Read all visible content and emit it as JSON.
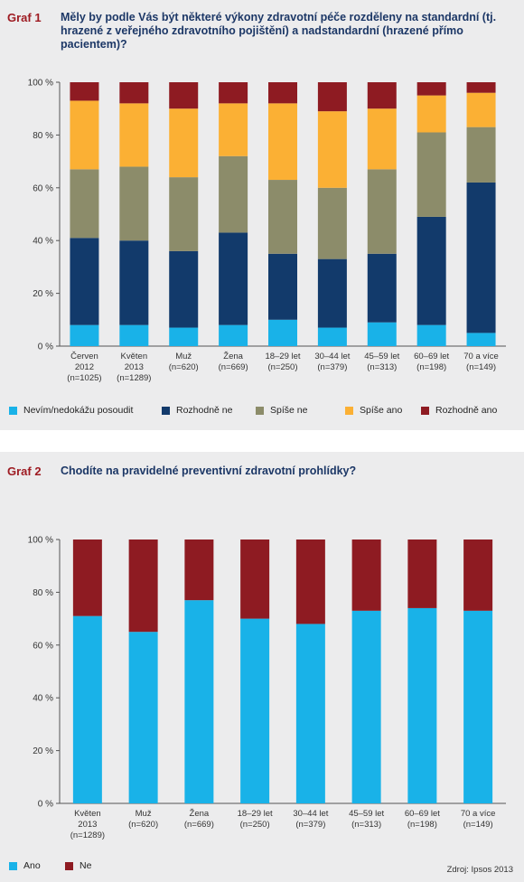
{
  "colors": {
    "nevim": "#19b2e8",
    "rozhodne_ne": "#123a6b",
    "spise_ne": "#8c8c6a",
    "spise_ano": "#fbb034",
    "rozhodne_ano": "#8e1b22",
    "ano": "#19b2e8",
    "ne": "#8e1b22"
  },
  "graf1": {
    "label": "Graf 1",
    "title": "Měly by podle Vás být některé výkony zdravotní péče rozděleny na standardní (tj. hrazené z veřejného zdravotního pojištění) a nadstandardní (hrazené přímo pacientem)?"
  },
  "graf2": {
    "label": "Graf 2",
    "title": "Chodíte na pravidelné preventivní zdravotní prohlídky?"
  },
  "source": "Zdroj: Ipsos 2013",
  "chart_data": [
    {
      "type": "bar",
      "stacked": true,
      "yticks": [
        "0 %",
        "20 %",
        "40 %",
        "60 %",
        "80 %",
        "100 %"
      ],
      "ylim": [
        0,
        100
      ],
      "grid": false,
      "legend_position": "bottom",
      "categories": [
        [
          "Červen",
          "2012",
          "(n=1025)"
        ],
        [
          "Květen",
          "2013",
          "(n=1289)"
        ],
        [
          "Muž",
          "(n=620)"
        ],
        [
          "Žena",
          "(n=669)"
        ],
        [
          "18–29 let",
          "(n=250)"
        ],
        [
          "30–44 let",
          "(n=379)"
        ],
        [
          "45–59 let",
          "(n=313)"
        ],
        [
          "60–69 let",
          "(n=198)"
        ],
        [
          "70 a více",
          "(n=149)"
        ]
      ],
      "series": [
        {
          "name": "Nevím/nedokážu posoudit",
          "color_key": "nevim",
          "values": [
            8,
            8,
            7,
            8,
            10,
            7,
            9,
            8,
            5
          ]
        },
        {
          "name": "Rozhodně ne",
          "color_key": "rozhodne_ne",
          "values": [
            33,
            32,
            29,
            35,
            25,
            26,
            26,
            41,
            57
          ]
        },
        {
          "name": "Spíše ne",
          "color_key": "spise_ne",
          "values": [
            26,
            28,
            28,
            29,
            28,
            27,
            32,
            32,
            21
          ]
        },
        {
          "name": "Spíše ano",
          "color_key": "spise_ano",
          "values": [
            26,
            24,
            26,
            20,
            29,
            29,
            23,
            14,
            13
          ]
        },
        {
          "name": "Rozhodně ano",
          "color_key": "rozhodne_ano",
          "values": [
            7,
            8,
            10,
            8,
            8,
            11,
            10,
            5,
            4
          ]
        }
      ]
    },
    {
      "type": "bar",
      "stacked": true,
      "yticks": [
        "0 %",
        "20 %",
        "40 %",
        "60 %",
        "80 %",
        "100 %"
      ],
      "ylim": [
        0,
        100
      ],
      "grid": false,
      "legend_position": "bottom",
      "categories": [
        [
          "Květen",
          "2013",
          "(n=1289)"
        ],
        [
          "Muž",
          "(n=620)"
        ],
        [
          "Žena",
          "(n=669)"
        ],
        [
          "18–29 let",
          "(n=250)"
        ],
        [
          "30–44 let",
          "(n=379)"
        ],
        [
          "45–59 let",
          "(n=313)"
        ],
        [
          "60–69 let",
          "(n=198)"
        ],
        [
          "70 a více",
          "(n=149)"
        ]
      ],
      "series": [
        {
          "name": "Ano",
          "color_key": "ano",
          "values": [
            71,
            65,
            77,
            70,
            68,
            73,
            74,
            73
          ]
        },
        {
          "name": "Ne",
          "color_key": "ne",
          "values": [
            29,
            35,
            23,
            30,
            32,
            27,
            26,
            27
          ]
        }
      ]
    }
  ]
}
